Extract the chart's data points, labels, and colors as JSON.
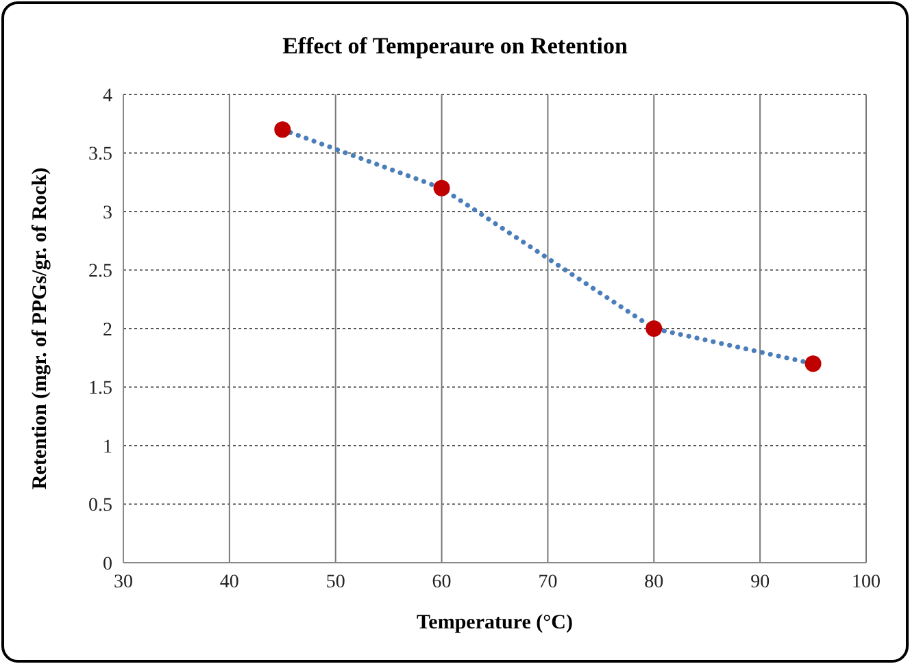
{
  "chart_data": {
    "type": "line",
    "title": "Effect of Temperaure on Retention",
    "xlabel": "Temperature (°C)",
    "ylabel": "Retention (mgr. of PPGs/gr. of Rock)",
    "x": [
      45,
      60,
      80,
      95
    ],
    "series": [
      {
        "color": "#4a7ebb",
        "values": [
          3.7,
          3.2,
          2.0,
          1.7
        ],
        "line_style": "dotted",
        "marker": "none"
      },
      {
        "type": "scatter",
        "color": "#c00000",
        "values": [
          3.7,
          3.2,
          2.0,
          1.7
        ],
        "marker": "circle"
      }
    ],
    "xlim": [
      30,
      100
    ],
    "xticks": [
      30,
      40,
      50,
      60,
      70,
      80,
      90,
      100
    ],
    "ylim": [
      0,
      4
    ],
    "yticks": [
      0,
      0.5,
      1,
      1.5,
      2,
      2.5,
      3,
      3.5,
      4
    ],
    "grid": true
  }
}
